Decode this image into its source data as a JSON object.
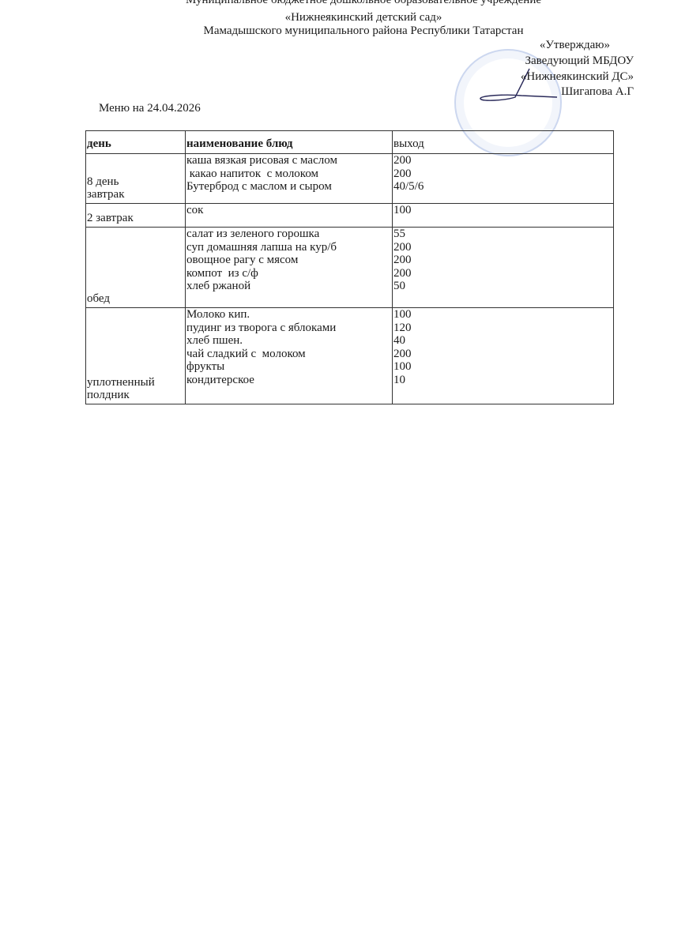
{
  "header": {
    "line1": "Муниципальное бюджетное дошкольное образовательное  учреждение",
    "line2": "«Нижнеякинский детский сад»",
    "line3": "Мамадышского муниципального района Республики Татарстан"
  },
  "approval": {
    "line1": "«Утверждаю»",
    "line2": "Заведующий МБДОУ",
    "line3": "«Нижнеякинский ДС»",
    "line4": "Шигапова А.Г"
  },
  "menu_title": "Меню на 24.04.2026",
  "table": {
    "headers": [
      "день",
      "наименование блюд",
      "выход"
    ],
    "rows": [
      {
        "day": [
          "8 день",
          "завтрак"
        ],
        "dishes": [
          "каша вязкая рисовая с маслом",
          " какао напиток  с молоком",
          "Бутерброд с маслом и сыром"
        ],
        "yields": [
          "200",
          "200",
          "40/5/6"
        ]
      },
      {
        "day": [
          "2 завтрак"
        ],
        "dishes": [
          "сок"
        ],
        "yields": [
          "100"
        ]
      },
      {
        "day": [
          "обед"
        ],
        "dishes": [
          "салат из зеленого горошка",
          "суп домашняя лапша на кур/б",
          "овощное рагу с мясом",
          "компот  из с/ф",
          "хлеб ржаной"
        ],
        "yields": [
          "55",
          "200",
          "200",
          "200",
          "50"
        ]
      },
      {
        "day": [
          "уплотненный",
          "полдник"
        ],
        "dishes": [
          "Молоко кип.",
          "пудинг из творога с яблоками",
          "хлеб пшен.",
          "чай сладкий с  молоком",
          "фрукты",
          "кондитерское"
        ],
        "yields": [
          "100",
          "120",
          "40",
          "200",
          "100",
          "10"
        ]
      }
    ]
  },
  "colors": {
    "stamp": "#6e8cd2",
    "ink": "#1a1a1a"
  }
}
